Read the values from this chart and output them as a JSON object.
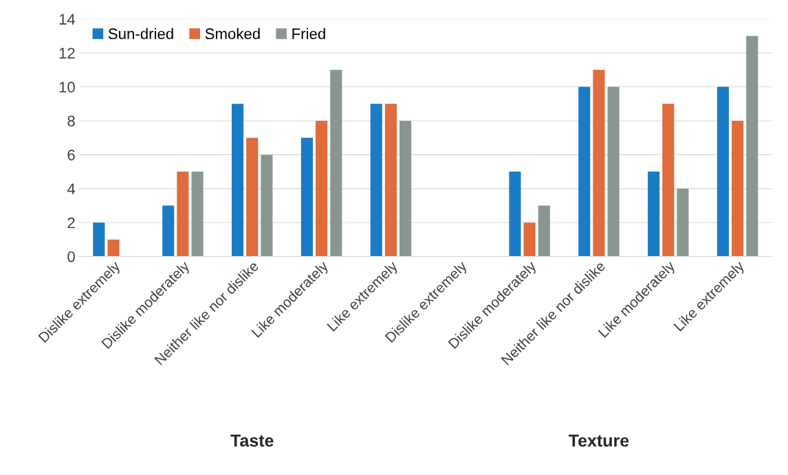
{
  "chart_data": {
    "type": "bar",
    "categories": [
      "Dislike extremely",
      "Dislike moderately",
      "Neither like nor dislike",
      "Like moderately",
      "Like extremely",
      "Dislike extremely",
      "Dislike moderately",
      "Neither like nor dislike",
      "Like moderately",
      "Like extremely"
    ],
    "series": [
      {
        "name": "Sun-dried",
        "color": "#1a7cc7",
        "values": [
          2,
          3,
          9,
          7,
          9,
          0,
          5,
          10,
          5,
          10
        ]
      },
      {
        "name": "Smoked",
        "color": "#e06b3c",
        "values": [
          1,
          5,
          7,
          8,
          9,
          0,
          2,
          11,
          9,
          8
        ]
      },
      {
        "name": "Fried",
        "color": "#8a9790",
        "values": [
          0,
          5,
          6,
          11,
          8,
          0,
          3,
          10,
          4,
          13
        ]
      }
    ],
    "ylim": [
      0,
      14
    ],
    "yticks": [
      0,
      2,
      4,
      6,
      8,
      10,
      12,
      14
    ],
    "grid": "y",
    "legend": "top left",
    "annotations": [
      "Taste",
      "Texture"
    ]
  }
}
